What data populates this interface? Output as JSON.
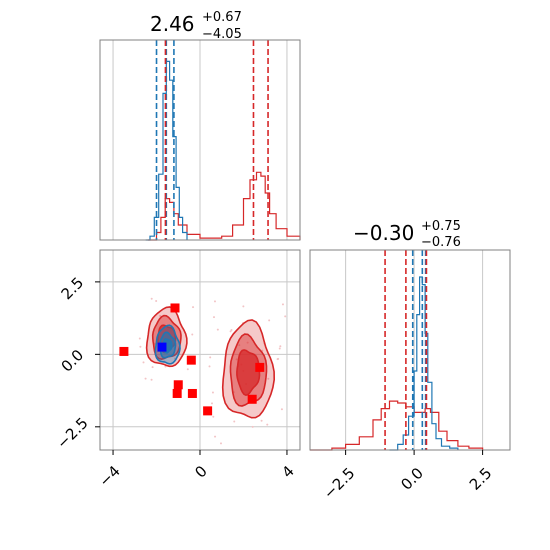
{
  "colors": {
    "blue": "#1f77b4",
    "red": "#d62728",
    "marker_red": "#ff0000",
    "marker_blue": "#0000ff",
    "grid": "#c8c8c8",
    "axes": "#808080"
  },
  "chart_data": {
    "type": "corner",
    "params": [
      "x",
      "y"
    ],
    "titles": [
      {
        "median": "2.46",
        "plus": "+0.67",
        "minus": "−4.05"
      },
      {
        "median": "−0.30",
        "plus": "+0.75",
        "minus": "−0.76"
      }
    ],
    "x_axis": {
      "range": [
        -4.6,
        4.6
      ],
      "ticks": [
        -4,
        0,
        4
      ],
      "tick_labels": [
        "−4",
        "0",
        "4"
      ]
    },
    "y_axis": {
      "range": [
        -3.3,
        3.6
      ],
      "ticks": [
        2.5,
        0.0,
        -2.5
      ],
      "tick_labels": [
        "2.5",
        "0.0",
        "−2.5"
      ]
    },
    "x2_axis": {
      "range": [
        -3.8,
        3.5
      ],
      "ticks": [
        -2.5,
        0.0,
        2.5
      ],
      "tick_labels": [
        "−2.5",
        "0.0",
        "2.5"
      ]
    },
    "grid": true,
    "hist_x": {
      "blue": {
        "x": [
          -2.5,
          -2.3,
          -2.1,
          -1.9,
          -1.7,
          -1.55,
          -1.4,
          -1.25,
          -1.1,
          -0.95,
          -0.8,
          -0.6
        ],
        "density": [
          0.0,
          0.02,
          0.12,
          0.35,
          0.78,
          0.95,
          0.85,
          0.55,
          0.28,
          0.12,
          0.04,
          0.0
        ]
      },
      "red": {
        "x": [
          -2.4,
          -2.0,
          -1.8,
          -1.6,
          -1.4,
          -1.2,
          -1.0,
          -0.6,
          0.0,
          1.0,
          1.5,
          2.0,
          2.3,
          2.6,
          2.8,
          3.0,
          3.2,
          3.5,
          4.0,
          4.6
        ],
        "density": [
          0.0,
          0.04,
          0.12,
          0.22,
          0.2,
          0.14,
          0.08,
          0.03,
          0.01,
          0.02,
          0.08,
          0.22,
          0.32,
          0.36,
          0.34,
          0.25,
          0.14,
          0.06,
          0.02,
          0.0
        ]
      },
      "blue_quantiles": [
        -2.0,
        -1.55,
        -1.2
      ],
      "red_quantiles": [
        -1.59,
        2.46,
        3.13
      ]
    },
    "hist_y": {
      "blue": {
        "x": [
          -0.9,
          -0.6,
          -0.4,
          -0.2,
          0.0,
          0.1,
          0.2,
          0.3,
          0.4,
          0.5,
          0.65,
          0.8,
          1.0,
          1.3,
          1.6
        ],
        "density": [
          0.0,
          0.03,
          0.08,
          0.18,
          0.42,
          0.72,
          0.92,
          0.88,
          0.62,
          0.36,
          0.14,
          0.06,
          0.02,
          0.01,
          0.0
        ]
      },
      "red": {
        "x": [
          -3.8,
          -3.0,
          -2.5,
          -2.0,
          -1.5,
          -1.2,
          -0.9,
          -0.6,
          -0.3,
          0.0,
          0.2,
          0.4,
          0.6,
          0.9,
          1.2,
          1.6,
          2.0,
          2.5
        ],
        "density": [
          0.0,
          0.01,
          0.03,
          0.07,
          0.16,
          0.22,
          0.26,
          0.25,
          0.23,
          0.2,
          0.2,
          0.22,
          0.2,
          0.1,
          0.05,
          0.02,
          0.01,
          0.0
        ]
      },
      "blue_quantiles": [
        -0.05,
        0.3,
        0.42
      ],
      "red_quantiles": [
        -1.06,
        -0.3,
        0.45
      ]
    },
    "contours_red": [
      {
        "cx": 2.2,
        "cy": -0.6,
        "rx": 1.15,
        "ry": 1.65,
        "levels": [
          1.0,
          0.72,
          0.45
        ]
      },
      {
        "cx": -1.55,
        "cy": 0.55,
        "rx": 0.9,
        "ry": 1.0,
        "levels": [
          1.0,
          0.72,
          0.45
        ]
      }
    ],
    "contours_blue": [
      {
        "cx": -1.5,
        "cy": 0.3,
        "rx": 0.55,
        "ry": 0.65,
        "levels": [
          1.0,
          0.65,
          0.35
        ]
      }
    ],
    "markers_red": [
      {
        "x": -3.5,
        "y": 0.1
      },
      {
        "x": -1.15,
        "y": 1.6
      },
      {
        "x": -0.4,
        "y": -0.2
      },
      {
        "x": -1.0,
        "y": -1.05
      },
      {
        "x": -1.05,
        "y": -1.35
      },
      {
        "x": -0.35,
        "y": -1.35
      },
      {
        "x": 0.35,
        "y": -1.95
      },
      {
        "x": 2.75,
        "y": -0.45
      },
      {
        "x": 2.4,
        "y": -1.55
      }
    ],
    "marker_blue": {
      "x": -1.75,
      "y": 0.25
    }
  }
}
